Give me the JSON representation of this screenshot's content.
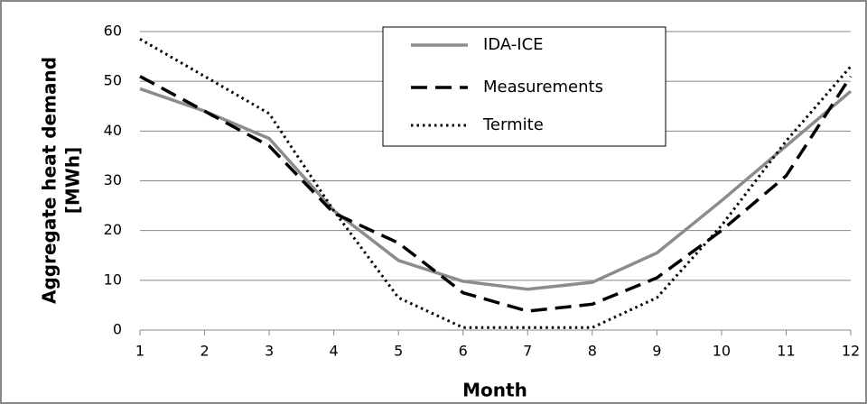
{
  "chart_data": {
    "type": "line",
    "x_label": "Month",
    "y_label": [
      "Aggregate heat demand",
      "[MWh]"
    ],
    "x": [
      1,
      2,
      3,
      4,
      5,
      6,
      7,
      8,
      9,
      10,
      11,
      12
    ],
    "xlim": [
      1,
      12
    ],
    "xticks": [
      1,
      2,
      3,
      4,
      5,
      6,
      7,
      8,
      9,
      10,
      11,
      12
    ],
    "ylim": [
      0,
      60
    ],
    "yticks": [
      0,
      10,
      20,
      30,
      40,
      50,
      60
    ],
    "grid": true,
    "legend": "top",
    "series": [
      {
        "name": "IDA-ICE",
        "color": "#8c8c8c",
        "line_style": "solid",
        "values": [
          48.5,
          44,
          38.5,
          24,
          14,
          9.8,
          8.2,
          9.6,
          15.5,
          26,
          37,
          48
        ]
      },
      {
        "name": "Measurements",
        "color": "#000000",
        "line_style": "dashed",
        "values": [
          51,
          44,
          37,
          23.5,
          17.5,
          7.5,
          3.8,
          5.2,
          10.5,
          20,
          31,
          51
        ]
      },
      {
        "name": "Termite",
        "color": "#000000",
        "line_style": "dotted",
        "values": [
          58.5,
          51,
          43.5,
          24,
          6.5,
          0.5,
          0.5,
          0.5,
          6.5,
          21,
          38,
          53
        ]
      }
    ]
  }
}
